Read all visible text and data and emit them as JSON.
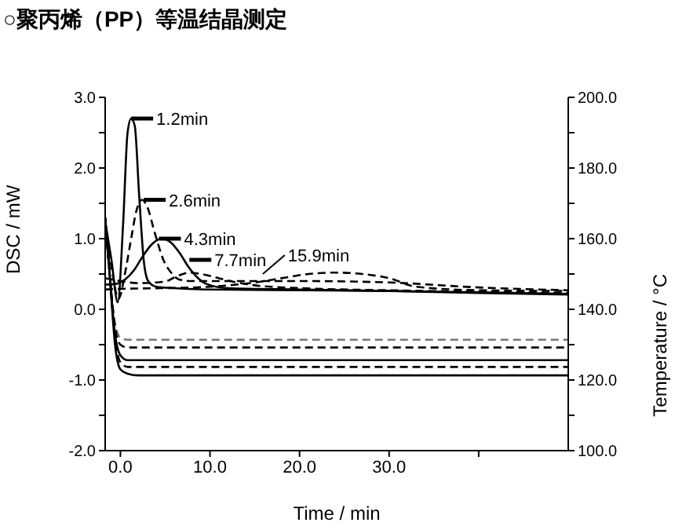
{
  "chart_data": {
    "type": "line",
    "title": "○聚丙烯（PP）等温结晶测定",
    "xlabel": "Time / min",
    "ylabel": "DSC / mW",
    "y2label": "Temperature / °C",
    "xlim": [
      -1.7,
      50
    ],
    "xticks": [
      {
        "value": 0,
        "label": "0.0"
      },
      {
        "value": 10,
        "label": "10.0"
      },
      {
        "value": 20,
        "label": "20.0"
      },
      {
        "value": 30,
        "label": "30.0"
      },
      {
        "value": 40,
        "label": null
      }
    ],
    "ylim": [
      -2,
      3
    ],
    "yticks": [
      {
        "value": -2,
        "label": "-2.0"
      },
      {
        "value": -1.5,
        "label": null
      },
      {
        "value": -1,
        "label": "-1.0"
      },
      {
        "value": -0.5,
        "label": null
      },
      {
        "value": 0,
        "label": "0.0"
      },
      {
        "value": 0.5,
        "label": null
      },
      {
        "value": 1,
        "label": "1.0"
      },
      {
        "value": 1.5,
        "label": null
      },
      {
        "value": 2,
        "label": "2.0"
      },
      {
        "value": 2.5,
        "label": null
      },
      {
        "value": 3,
        "label": "3.0"
      }
    ],
    "y2lim": [
      100,
      200
    ],
    "y2ticks": [
      {
        "value": 100,
        "label": "100.0"
      },
      {
        "value": 110,
        "label": null
      },
      {
        "value": 120,
        "label": "120.0"
      },
      {
        "value": 130,
        "label": null
      },
      {
        "value": 140,
        "label": "140.0"
      },
      {
        "value": 150,
        "label": null
      },
      {
        "value": 160,
        "label": "160.0"
      },
      {
        "value": 170,
        "label": null
      },
      {
        "value": 180,
        "label": "180.0"
      },
      {
        "value": 190,
        "label": null
      },
      {
        "value": 200,
        "label": "200.0"
      }
    ],
    "grid": false,
    "legend": false,
    "marker": "none",
    "series": [
      {
        "color": "#000000",
        "line_style": "solid",
        "x": [
          -1.7,
          -1.0,
          -0.3,
          0.3,
          0.8,
          1.2,
          1.6,
          2.1,
          2.6,
          3.1,
          4.0,
          6,
          10,
          20,
          30,
          40,
          50
        ],
        "values": [
          1.25,
          0.7,
          0.1,
          1.2,
          2.5,
          2.7,
          2.6,
          1.6,
          0.7,
          0.4,
          0.32,
          0.3,
          0.28,
          0.27,
          0.26,
          0.24,
          0.22
        ]
      },
      {
        "color": "#000000",
        "line_style": "dashed",
        "x": [
          -1.7,
          -1.0,
          -0.2,
          0.5,
          1.2,
          1.8,
          2.4,
          3.0,
          3.8,
          4.8,
          5.8,
          6.6,
          8,
          10,
          20,
          30,
          40,
          50
        ],
        "values": [
          1.2,
          0.6,
          0.15,
          0.5,
          1.0,
          1.4,
          1.55,
          1.45,
          1.1,
          0.7,
          0.5,
          0.42,
          0.4,
          0.4,
          0.4,
          0.38,
          0.31,
          0.27
        ]
      },
      {
        "color": "#000000",
        "line_style": "solid",
        "x": [
          -1.7,
          -0.5,
          0.5,
          1.5,
          2.5,
          3.5,
          4.6,
          5.6,
          6.6,
          7.6,
          8.6,
          9.6,
          12,
          20,
          30,
          40,
          50
        ],
        "values": [
          0.35,
          0.36,
          0.42,
          0.55,
          0.75,
          0.92,
          1.0,
          0.95,
          0.8,
          0.6,
          0.45,
          0.36,
          0.3,
          0.28,
          0.26,
          0.23,
          0.21
        ]
      },
      {
        "color": "#000000",
        "line_style": "dashed",
        "x": [
          -1.7,
          0,
          2,
          4,
          5.2,
          6,
          7,
          7.7,
          9,
          11,
          13,
          15,
          20,
          30,
          40,
          50
        ],
        "values": [
          0.44,
          0.4,
          0.37,
          0.38,
          0.4,
          0.45,
          0.5,
          0.52,
          0.5,
          0.44,
          0.38,
          0.34,
          0.3,
          0.27,
          0.25,
          0.23
        ]
      },
      {
        "color": "#000000",
        "line_style": "dashed",
        "x": [
          -1.7,
          0,
          5,
          10,
          15,
          18,
          21,
          24,
          27,
          30,
          33,
          40,
          50
        ],
        "values": [
          0.28,
          0.29,
          0.3,
          0.32,
          0.38,
          0.44,
          0.5,
          0.52,
          0.5,
          0.44,
          0.32,
          0.27,
          0.26
        ]
      },
      {
        "axis": "y2",
        "color": "#777777",
        "line_style": "dashed",
        "x": [
          -1.7,
          -1.2,
          -0.6,
          0,
          0.8,
          50
        ],
        "values": [
          166,
          150,
          136,
          132,
          131.4,
          131.4
        ]
      },
      {
        "axis": "y2",
        "color": "#000000",
        "line_style": "dashed",
        "x": [
          -1.7,
          -1.2,
          -0.6,
          0,
          0.8,
          50
        ],
        "values": [
          166,
          150,
          135,
          130,
          129.2,
          129.2
        ]
      },
      {
        "axis": "y2",
        "color": "#000000",
        "line_style": "solid",
        "x": [
          -1.7,
          -1.2,
          -0.6,
          0,
          0.8,
          50
        ],
        "values": [
          166,
          150,
          133,
          127,
          125.6,
          125.6
        ]
      },
      {
        "axis": "y2",
        "color": "#000000",
        "line_style": "dashed",
        "x": [
          -1.7,
          -1.2,
          -0.6,
          0,
          0.8,
          50
        ],
        "values": [
          166,
          150,
          132,
          125,
          123.7,
          123.7
        ]
      },
      {
        "axis": "y2",
        "color": "#000000",
        "line_style": "solid",
        "x": [
          -1.7,
          -1.2,
          -0.6,
          0,
          0.8,
          2,
          50
        ],
        "values": [
          166,
          150,
          130,
          123,
          121.8,
          121.3,
          121.3
        ]
      }
    ],
    "annotations": [
      {
        "text": "1.2min",
        "x": 1.2,
        "y": 2.7
      },
      {
        "text": "2.6min",
        "x": 2.6,
        "y": 1.55
      },
      {
        "text": "4.3min",
        "x": 4.3,
        "y": 1.0
      },
      {
        "text": "7.7min",
        "x": 7.7,
        "y": 0.7
      },
      {
        "text": "15.9min",
        "x": 15.9,
        "y": 0.5
      }
    ]
  }
}
